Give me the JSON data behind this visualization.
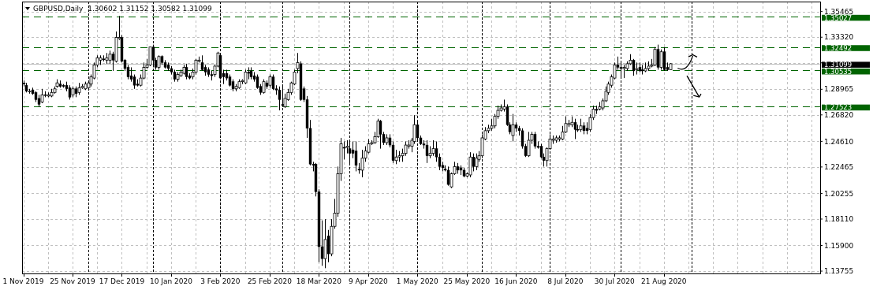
{
  "chart_data": {
    "type": "candlestick",
    "title": "GBPUSD,Daily  1.30602 1.31152 1.30582 1.31099",
    "categories": [
      "1 Nov 2019",
      null,
      null,
      null,
      null,
      null,
      null,
      null,
      null,
      null,
      null,
      null,
      null,
      null,
      null,
      null,
      "25 Nov 2019",
      null,
      null,
      null,
      null,
      null,
      null,
      null,
      null,
      null,
      null,
      null,
      null,
      null,
      null,
      null,
      "17 Dec 2019",
      null,
      null,
      null,
      null,
      null,
      null,
      null,
      null,
      null,
      null,
      null,
      null,
      null,
      null,
      null,
      "10 Jan 2020",
      null,
      null,
      null,
      null,
      null,
      null,
      null,
      null,
      null,
      null,
      null,
      null,
      null,
      null,
      null,
      "3 Feb 2020",
      null,
      null,
      null,
      null,
      null,
      null,
      null,
      null,
      null,
      null,
      null,
      null,
      null,
      null,
      null,
      "25 Feb 2020",
      null,
      null,
      null,
      null,
      null,
      null,
      null,
      null,
      null,
      null,
      null,
      null,
      null,
      null,
      null,
      "18 Mar 2020",
      null,
      null,
      null,
      null,
      null,
      null,
      null,
      null,
      null,
      null,
      null,
      null,
      null,
      null,
      null,
      "9 Apr 2020",
      null,
      null,
      null,
      null,
      null,
      null,
      null,
      null,
      null,
      null,
      null,
      null,
      null,
      null,
      null,
      "1 May 2020",
      null,
      null,
      null,
      null,
      null,
      null,
      null,
      null,
      null,
      null,
      null,
      null,
      null,
      null,
      null,
      "25 May 2020",
      null,
      null,
      null,
      null,
      null,
      null,
      null,
      null,
      null,
      null,
      null,
      null,
      null,
      null,
      null,
      "16 Jun 2020",
      null,
      null,
      null,
      null,
      null,
      null,
      null,
      null,
      null,
      null,
      null,
      null,
      null,
      null,
      null,
      "8 Jul 2020",
      null,
      null,
      null,
      null,
      null,
      null,
      null,
      null,
      null,
      null,
      null,
      null,
      null,
      null,
      null,
      "30 Jul 2020",
      null,
      null,
      null,
      null,
      null,
      null,
      null,
      null,
      null,
      null,
      null,
      null,
      null,
      null,
      null,
      "21 Aug 2020",
      null,
      null,
      null,
      null,
      null,
      null,
      null,
      null,
      null,
      null,
      null,
      null,
      null,
      null,
      null,
      null,
      null,
      null,
      null,
      null,
      null,
      null,
      null,
      null,
      null,
      null,
      null,
      null,
      null,
      null,
      null,
      null,
      null,
      null,
      null,
      null,
      null,
      null,
      null,
      null,
      null,
      null,
      null,
      null,
      null,
      null,
      null,
      null,
      null,
      null
    ],
    "ohlc": [
      [
        1.295,
        1.297,
        1.292,
        1.294
      ],
      [
        1.293,
        1.295,
        1.287,
        1.288
      ],
      [
        1.288,
        1.29,
        1.286,
        1.288
      ],
      [
        1.289,
        1.291,
        1.285,
        1.286
      ],
      [
        1.287,
        1.288,
        1.279,
        1.281
      ],
      [
        1.282,
        1.285,
        1.275,
        1.277
      ],
      [
        1.279,
        1.29,
        1.278,
        1.285
      ],
      [
        1.285,
        1.288,
        1.283,
        1.285
      ],
      [
        1.284,
        1.287,
        1.283,
        1.285
      ],
      [
        1.284,
        1.29,
        1.283,
        1.287
      ],
      [
        1.287,
        1.292,
        1.286,
        1.29
      ],
      [
        1.292,
        1.298,
        1.291,
        1.295
      ],
      [
        1.294,
        1.297,
        1.291,
        1.292
      ],
      [
        1.293,
        1.294,
        1.291,
        1.292
      ],
      [
        1.293,
        1.296,
        1.288,
        1.29
      ],
      [
        1.291,
        1.293,
        1.281,
        1.283
      ],
      [
        1.285,
        1.292,
        1.283,
        1.29
      ],
      [
        1.29,
        1.292,
        1.283,
        1.286
      ],
      [
        1.287,
        1.295,
        1.285,
        1.291
      ],
      [
        1.291,
        1.294,
        1.29,
        1.292
      ],
      [
        1.29,
        1.296,
        1.289,
        1.294
      ],
      [
        1.291,
        1.297,
        1.289,
        1.295
      ],
      [
        1.294,
        1.302,
        1.292,
        1.3
      ],
      [
        1.299,
        1.312,
        1.298,
        1.31
      ],
      [
        1.31,
        1.318,
        1.308,
        1.316
      ],
      [
        1.314,
        1.318,
        1.31,
        1.316
      ],
      [
        1.315,
        1.318,
        1.313,
        1.315
      ],
      [
        1.314,
        1.32,
        1.311,
        1.316
      ],
      [
        1.314,
        1.322,
        1.311,
        1.319
      ],
      [
        1.319,
        1.321,
        1.305,
        1.314
      ],
      [
        1.313,
        1.338,
        1.312,
        1.333
      ],
      [
        1.332,
        1.351,
        1.331,
        1.333
      ],
      [
        1.333,
        1.335,
        1.312,
        1.313
      ],
      [
        1.314,
        1.315,
        1.305,
        1.307
      ],
      [
        1.308,
        1.31,
        1.298,
        1.3
      ],
      [
        1.301,
        1.308,
        1.296,
        1.298
      ],
      [
        1.3,
        1.302,
        1.29,
        1.293
      ],
      [
        1.294,
        1.298,
        1.292,
        1.293
      ],
      [
        1.293,
        1.302,
        1.292,
        1.299
      ],
      [
        1.299,
        1.312,
        1.298,
        1.308
      ],
      [
        1.308,
        1.315,
        1.307,
        1.31
      ],
      [
        1.31,
        1.325,
        1.309,
        1.325
      ],
      [
        1.325,
        1.327,
        1.308,
        1.314
      ],
      [
        1.314,
        1.316,
        1.306,
        1.308
      ],
      [
        1.308,
        1.318,
        1.306,
        1.317
      ],
      [
        1.317,
        1.318,
        1.31,
        1.312
      ],
      [
        1.312,
        1.314,
        1.307,
        1.308
      ],
      [
        1.31,
        1.312,
        1.305,
        1.307
      ],
      [
        1.307,
        1.309,
        1.302,
        1.304
      ],
      [
        1.304,
        1.306,
        1.296,
        1.298
      ],
      [
        1.298,
        1.304,
        1.296,
        1.302
      ],
      [
        1.301,
        1.306,
        1.3,
        1.304
      ],
      [
        1.303,
        1.31,
        1.302,
        1.308
      ],
      [
        1.308,
        1.311,
        1.298,
        1.3
      ],
      [
        1.301,
        1.303,
        1.298,
        1.299
      ],
      [
        1.3,
        1.307,
        1.298,
        1.304
      ],
      [
        1.304,
        1.315,
        1.302,
        1.314
      ],
      [
        1.313,
        1.317,
        1.312,
        1.314
      ],
      [
        1.312,
        1.318,
        1.305,
        1.306
      ],
      [
        1.308,
        1.31,
        1.301,
        1.304
      ],
      [
        1.306,
        1.308,
        1.3,
        1.302
      ],
      [
        1.302,
        1.305,
        1.297,
        1.301
      ],
      [
        1.302,
        1.31,
        1.3,
        1.309
      ],
      [
        1.309,
        1.321,
        1.308,
        1.32
      ],
      [
        1.318,
        1.32,
        1.298,
        1.299
      ],
      [
        1.303,
        1.306,
        1.294,
        1.3
      ],
      [
        1.303,
        1.306,
        1.297,
        1.299
      ],
      [
        1.3,
        1.302,
        1.292,
        1.293
      ],
      [
        1.296,
        1.298,
        1.288,
        1.29
      ],
      [
        1.29,
        1.294,
        1.288,
        1.292
      ],
      [
        1.291,
        1.298,
        1.29,
        1.296
      ],
      [
        1.296,
        1.298,
        1.294,
        1.297
      ],
      [
        1.295,
        1.306,
        1.294,
        1.304
      ],
      [
        1.304,
        1.308,
        1.298,
        1.303
      ],
      [
        1.305,
        1.308,
        1.298,
        1.3
      ],
      [
        1.301,
        1.304,
        1.296,
        1.298
      ],
      [
        1.3,
        1.302,
        1.29,
        1.291
      ],
      [
        1.292,
        1.294,
        1.285,
        1.287
      ],
      [
        1.287,
        1.298,
        1.286,
        1.296
      ],
      [
        1.295,
        1.297,
        1.29,
        1.292
      ],
      [
        1.293,
        1.302,
        1.291,
        1.3
      ],
      [
        1.3,
        1.302,
        1.289,
        1.29
      ],
      [
        1.29,
        1.293,
        1.285,
        1.289
      ],
      [
        1.289,
        1.292,
        1.272,
        1.281
      ],
      [
        1.277,
        1.292,
        1.275,
        1.276
      ],
      [
        1.275,
        1.286,
        1.274,
        1.282
      ],
      [
        1.281,
        1.29,
        1.28,
        1.287
      ],
      [
        1.287,
        1.296,
        1.285,
        1.295
      ],
      [
        1.294,
        1.306,
        1.293,
        1.304
      ],
      [
        1.307,
        1.32,
        1.303,
        1.312
      ],
      [
        1.311,
        1.313,
        1.28,
        1.281
      ],
      [
        1.29,
        1.292,
        1.279,
        1.281
      ],
      [
        1.281,
        1.284,
        1.249,
        1.257
      ],
      [
        1.257,
        1.264,
        1.226,
        1.227
      ],
      [
        1.227,
        1.229,
        1.221,
        1.226
      ],
      [
        1.227,
        1.228,
        1.2,
        1.204
      ],
      [
        1.204,
        1.206,
        1.145,
        1.158
      ],
      [
        1.158,
        1.18,
        1.142,
        1.148
      ],
      [
        1.148,
        1.181,
        1.14,
        1.164
      ],
      [
        1.167,
        1.172,
        1.145,
        1.152
      ],
      [
        1.152,
        1.181,
        1.15,
        1.175
      ],
      [
        1.175,
        1.198,
        1.173,
        1.186
      ],
      [
        1.186,
        1.225,
        1.183,
        1.219
      ],
      [
        1.219,
        1.249,
        1.213,
        1.244
      ],
      [
        1.241,
        1.246,
        1.231,
        1.241
      ],
      [
        1.241,
        1.247,
        1.236,
        1.242
      ],
      [
        1.24,
        1.246,
        1.226,
        1.236
      ],
      [
        1.239,
        1.246,
        1.232,
        1.236
      ],
      [
        1.238,
        1.246,
        1.221,
        1.226
      ],
      [
        1.223,
        1.228,
        1.219,
        1.222
      ],
      [
        1.222,
        1.239,
        1.216,
        1.232
      ],
      [
        1.232,
        1.242,
        1.229,
        1.238
      ],
      [
        1.237,
        1.248,
        1.236,
        1.244
      ],
      [
        1.244,
        1.247,
        1.243,
        1.245
      ],
      [
        1.245,
        1.254,
        1.244,
        1.25
      ],
      [
        1.25,
        1.265,
        1.249,
        1.263
      ],
      [
        1.263,
        1.264,
        1.24,
        1.252
      ],
      [
        1.252,
        1.254,
        1.243,
        1.245
      ],
      [
        1.245,
        1.252,
        1.243,
        1.249
      ],
      [
        1.249,
        1.252,
        1.241,
        1.243
      ],
      [
        1.243,
        1.246,
        1.228,
        1.23
      ],
      [
        1.23,
        1.239,
        1.227,
        1.233
      ],
      [
        1.233,
        1.238,
        1.229,
        1.234
      ],
      [
        1.234,
        1.24,
        1.229,
        1.236
      ],
      [
        1.236,
        1.246,
        1.234,
        1.243
      ],
      [
        1.242,
        1.247,
        1.24,
        1.243
      ],
      [
        1.242,
        1.249,
        1.237,
        1.247
      ],
      [
        1.246,
        1.268,
        1.244,
        1.26
      ],
      [
        1.26,
        1.263,
        1.247,
        1.249
      ],
      [
        1.249,
        1.251,
        1.243,
        1.244
      ],
      [
        1.244,
        1.247,
        1.24,
        1.243
      ],
      [
        1.243,
        1.247,
        1.228,
        1.234
      ],
      [
        1.234,
        1.242,
        1.232,
        1.236
      ],
      [
        1.236,
        1.247,
        1.234,
        1.24
      ],
      [
        1.24,
        1.246,
        1.229,
        1.233
      ],
      [
        1.233,
        1.236,
        1.222,
        1.225
      ],
      [
        1.226,
        1.229,
        1.221,
        1.224
      ],
      [
        1.223,
        1.226,
        1.221,
        1.222
      ],
      [
        1.222,
        1.225,
        1.209,
        1.21
      ],
      [
        1.208,
        1.22,
        1.207,
        1.219
      ],
      [
        1.219,
        1.229,
        1.218,
        1.225
      ],
      [
        1.225,
        1.228,
        1.219,
        1.222
      ],
      [
        1.224,
        1.226,
        1.218,
        1.222
      ],
      [
        1.222,
        1.224,
        1.216,
        1.217
      ],
      [
        1.217,
        1.22,
        1.216,
        1.219
      ],
      [
        1.218,
        1.237,
        1.216,
        1.233
      ],
      [
        1.233,
        1.236,
        1.221,
        1.225
      ],
      [
        1.225,
        1.236,
        1.222,
        1.232
      ],
      [
        1.231,
        1.238,
        1.229,
        1.234
      ],
      [
        1.234,
        1.252,
        1.232,
        1.249
      ],
      [
        1.248,
        1.258,
        1.247,
        1.255
      ],
      [
        1.255,
        1.26,
        1.253,
        1.257
      ],
      [
        1.257,
        1.265,
        1.255,
        1.259
      ],
      [
        1.259,
        1.269,
        1.257,
        1.267
      ],
      [
        1.267,
        1.276,
        1.265,
        1.272
      ],
      [
        1.272,
        1.277,
        1.271,
        1.274
      ],
      [
        1.273,
        1.281,
        1.271,
        1.275
      ],
      [
        1.275,
        1.277,
        1.259,
        1.26
      ],
      [
        1.26,
        1.262,
        1.252,
        1.254
      ],
      [
        1.251,
        1.269,
        1.246,
        1.26
      ],
      [
        1.26,
        1.262,
        1.254,
        1.257
      ],
      [
        1.257,
        1.259,
        1.251,
        1.255
      ],
      [
        1.255,
        1.257,
        1.24,
        1.242
      ],
      [
        1.242,
        1.244,
        1.233,
        1.234
      ],
      [
        1.234,
        1.254,
        1.233,
        1.247
      ],
      [
        1.247,
        1.254,
        1.244,
        1.252
      ],
      [
        1.252,
        1.254,
        1.24,
        1.242
      ],
      [
        1.242,
        1.246,
        1.24,
        1.241
      ],
      [
        1.242,
        1.244,
        1.232,
        1.233
      ],
      [
        1.233,
        1.236,
        1.225,
        1.23
      ],
      [
        1.23,
        1.241,
        1.225,
        1.24
      ],
      [
        1.24,
        1.252,
        1.239,
        1.248
      ],
      [
        1.247,
        1.251,
        1.244,
        1.248
      ],
      [
        1.247,
        1.251,
        1.245,
        1.249
      ],
      [
        1.248,
        1.251,
        1.246,
        1.249
      ],
      [
        1.248,
        1.259,
        1.247,
        1.254
      ],
      [
        1.254,
        1.267,
        1.253,
        1.261
      ],
      [
        1.26,
        1.264,
        1.258,
        1.261
      ],
      [
        1.26,
        1.267,
        1.258,
        1.262
      ],
      [
        1.262,
        1.265,
        1.248,
        1.256
      ],
      [
        1.256,
        1.26,
        1.254,
        1.256
      ],
      [
        1.256,
        1.265,
        1.254,
        1.259
      ],
      [
        1.259,
        1.262,
        1.252,
        1.255
      ],
      [
        1.257,
        1.262,
        1.252,
        1.255
      ],
      [
        1.256,
        1.269,
        1.254,
        1.266
      ],
      [
        1.266,
        1.276,
        1.264,
        1.273
      ],
      [
        1.273,
        1.276,
        1.269,
        1.272
      ],
      [
        1.273,
        1.279,
        1.272,
        1.275
      ],
      [
        1.274,
        1.282,
        1.272,
        1.28
      ],
      [
        1.28,
        1.292,
        1.279,
        1.288
      ],
      [
        1.287,
        1.296,
        1.285,
        1.294
      ],
      [
        1.293,
        1.302,
        1.291,
        1.3
      ],
      [
        1.299,
        1.312,
        1.298,
        1.31
      ],
      [
        1.31,
        1.317,
        1.306,
        1.308
      ],
      [
        1.308,
        1.313,
        1.3,
        1.307
      ],
      [
        1.307,
        1.31,
        1.299,
        1.308
      ],
      [
        1.307,
        1.313,
        1.305,
        1.311
      ],
      [
        1.311,
        1.319,
        1.31,
        1.314
      ],
      [
        1.314,
        1.315,
        1.301,
        1.305
      ],
      [
        1.306,
        1.312,
        1.302,
        1.307
      ],
      [
        1.308,
        1.312,
        1.304,
        1.305
      ],
      [
        1.306,
        1.31,
        1.302,
        1.305
      ],
      [
        1.305,
        1.312,
        1.304,
        1.307
      ],
      [
        1.307,
        1.313,
        1.305,
        1.309
      ],
      [
        1.309,
        1.315,
        1.308,
        1.31
      ],
      [
        1.31,
        1.325,
        1.309,
        1.323
      ],
      [
        1.323,
        1.327,
        1.306,
        1.308
      ],
      [
        1.308,
        1.323,
        1.306,
        1.321
      ],
      [
        1.321,
        1.325,
        1.305,
        1.306
      ],
      [
        1.308,
        1.312,
        1.305,
        1.306
      ],
      [
        1.30602,
        1.31152,
        1.30582,
        1.31099
      ],
      null,
      null,
      null,
      null,
      null,
      null,
      null,
      null,
      null,
      null,
      null,
      null,
      null,
      null,
      null,
      null,
      null,
      null,
      null,
      null,
      null,
      null,
      null,
      null,
      null,
      null,
      null,
      null,
      null,
      null,
      null,
      null,
      null,
      null,
      null,
      null,
      null,
      null,
      null,
      null,
      null,
      null,
      null,
      null,
      null,
      null,
      null,
      null
    ],
    "ylim": [
      1.1356,
      1.363
    ],
    "yticks": [
      {
        "value": 1.13755,
        "label": "1.13755"
      },
      {
        "value": 1.159,
        "label": "1.15900"
      },
      {
        "value": 1.1811,
        "label": "1.18110"
      },
      {
        "value": 1.20255,
        "label": "1.20255"
      },
      {
        "value": 1.22465,
        "label": "1.22465"
      },
      {
        "value": 1.2461,
        "label": "1.24610"
      },
      {
        "value": 1.2682,
        "label": "1.26820"
      },
      {
        "value": 1.28965,
        "label": "1.28965"
      },
      {
        "value": 1.31175,
        "label": null
      },
      {
        "value": 1.3332,
        "label": "1.33320"
      },
      {
        "value": 1.35465,
        "label": "1.35465"
      }
    ],
    "grid": true,
    "ref_lines": [
      {
        "axis": "y",
        "value": 1.35027,
        "label": "1.35027",
        "color": "#006400",
        "line_style": "dashed"
      },
      {
        "axis": "y",
        "value": 1.32492,
        "label": "1.32492",
        "color": "#006400",
        "line_style": "dashed"
      },
      {
        "axis": "y",
        "value": 1.31099,
        "label": "1.31099",
        "color": "#c0c0c0",
        "line_style": "solid"
      },
      {
        "axis": "y",
        "value": 1.30535,
        "label": "1.30535",
        "color": "#006400",
        "line_style": "dashed"
      },
      {
        "axis": "y",
        "value": 1.27523,
        "label": "1.27523",
        "color": "#006400",
        "line_style": "dashed"
      }
    ]
  }
}
